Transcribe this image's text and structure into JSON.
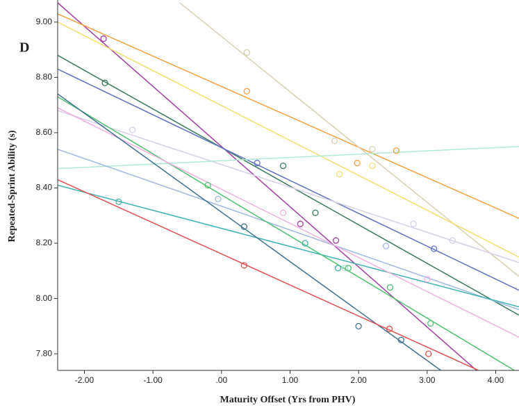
{
  "chart_data": {
    "type": "scatter",
    "panel_label": "D",
    "x_label": "Maturity Offset (Yrs from PHV)",
    "y_label": "Repeated-Sprint Ability (s)",
    "xlim": [
      -2.39,
      4.34
    ],
    "ylim": [
      7.74,
      9.08
    ],
    "xticks": [
      {
        "value": -2,
        "label": "-2.00"
      },
      {
        "value": -1,
        "label": "-1.00"
      },
      {
        "value": 0,
        "label": ".00"
      },
      {
        "value": 1,
        "label": "1.00"
      },
      {
        "value": 2,
        "label": "2.00"
      },
      {
        "value": 3,
        "label": "3.00"
      },
      {
        "value": 4,
        "label": "4.00"
      }
    ],
    "yticks": [
      {
        "value": 7.8,
        "label": "7.80"
      },
      {
        "value": 8.0,
        "label": "8.00"
      },
      {
        "value": 8.2,
        "label": "8.20"
      },
      {
        "value": 8.4,
        "label": "8.40"
      },
      {
        "value": 8.6,
        "label": "8.60"
      },
      {
        "value": 8.8,
        "label": "8.80"
      },
      {
        "value": 9.0,
        "label": "9.00"
      }
    ],
    "series": [
      {
        "color": "#a040a0",
        "x": [
          -1.72,
          1.15,
          1.67
        ],
        "values": [
          8.94,
          8.27,
          8.21
        ],
        "fit_x": [
          -2.39,
          3.72
        ],
        "fit_y": [
          9.07,
          7.74
        ]
      },
      {
        "color": "#f5a040",
        "x": [
          0.37,
          1.98,
          2.55
        ],
        "values": [
          8.75,
          8.49,
          8.535
        ],
        "fit_x": [
          -2.39,
          4.34
        ],
        "fit_y": [
          9.03,
          8.29
        ]
      },
      {
        "color": "#d8d0b0",
        "x": [
          0.37,
          1.65,
          2.2
        ],
        "values": [
          8.89,
          8.57,
          8.54
        ],
        "fit_x": [
          -0.61,
          4.34
        ],
        "fit_y": [
          9.07,
          8.08
        ]
      },
      {
        "color": "#3a7a5a",
        "x": [
          -1.7,
          0.9,
          1.37
        ],
        "values": [
          8.78,
          8.48,
          8.31
        ],
        "fit_x": [
          -2.39,
          4.34
        ],
        "fit_y": [
          8.88,
          7.94
        ]
      },
      {
        "color": "#6070c0",
        "x": [
          0.52,
          3.1
        ],
        "values": [
          8.49,
          8.18
        ],
        "fit_x": [
          -2.39,
          4.34
        ],
        "fit_y": [
          8.83,
          8.03
        ]
      },
      {
        "color": "#f0e070",
        "x": [
          1.72,
          2.2
        ],
        "values": [
          8.45,
          8.48
        ],
        "fit_x": [
          -2.39,
          4.34
        ],
        "fit_y": [
          9.0,
          8.15
        ]
      },
      {
        "color": "#d8d0e8",
        "x": [
          -1.3,
          2.8,
          3.37
        ],
        "values": [
          8.61,
          8.27,
          8.21
        ],
        "fit_x": [
          -2.39,
          4.34
        ],
        "fit_y": [
          8.68,
          8.13
        ]
      },
      {
        "color": "#b0e8d8",
        "x": [
          1.8
        ],
        "values": [
          8.11
        ],
        "fit_x": [
          -2.39,
          4.34
        ],
        "fit_y": [
          8.47,
          8.55
        ]
      },
      {
        "color": "#a0b8e0",
        "x": [
          -0.05,
          2.4
        ],
        "values": [
          8.36,
          8.19
        ],
        "fit_x": [
          -2.39,
          4.34
        ],
        "fit_y": [
          8.54,
          7.96
        ]
      },
      {
        "color": "#40b0b0",
        "x": [
          -1.5,
          1.22,
          1.7
        ],
        "values": [
          8.35,
          8.2,
          8.11
        ],
        "fit_x": [
          -2.39,
          4.34
        ],
        "fit_y": [
          8.41,
          7.97
        ]
      },
      {
        "color": "#50c070",
        "x": [
          -0.2,
          1.85,
          2.46,
          3.05
        ],
        "values": [
          8.41,
          8.11,
          8.04,
          7.91
        ],
        "fit_x": [
          -2.39,
          4.34
        ],
        "fit_y": [
          8.73,
          7.73
        ]
      },
      {
        "color": "#f0b0e0",
        "x": [
          0.9,
          3.0
        ],
        "values": [
          8.31,
          8.07
        ],
        "fit_x": [
          -2.39,
          4.34
        ],
        "fit_y": [
          8.69,
          7.86
        ]
      },
      {
        "color": "#407090",
        "x": [
          0.33,
          2.0,
          2.62
        ],
        "values": [
          8.26,
          7.9,
          7.85
        ],
        "fit_x": [
          -2.39,
          3.2
        ],
        "fit_y": [
          8.74,
          7.74
        ]
      },
      {
        "color": "#e05050",
        "x": [
          0.33,
          2.45,
          3.02
        ],
        "values": [
          8.12,
          7.89,
          7.8
        ],
        "fit_x": [
          -2.39,
          3.75
        ],
        "fit_y": [
          8.43,
          7.74
        ]
      }
    ]
  }
}
